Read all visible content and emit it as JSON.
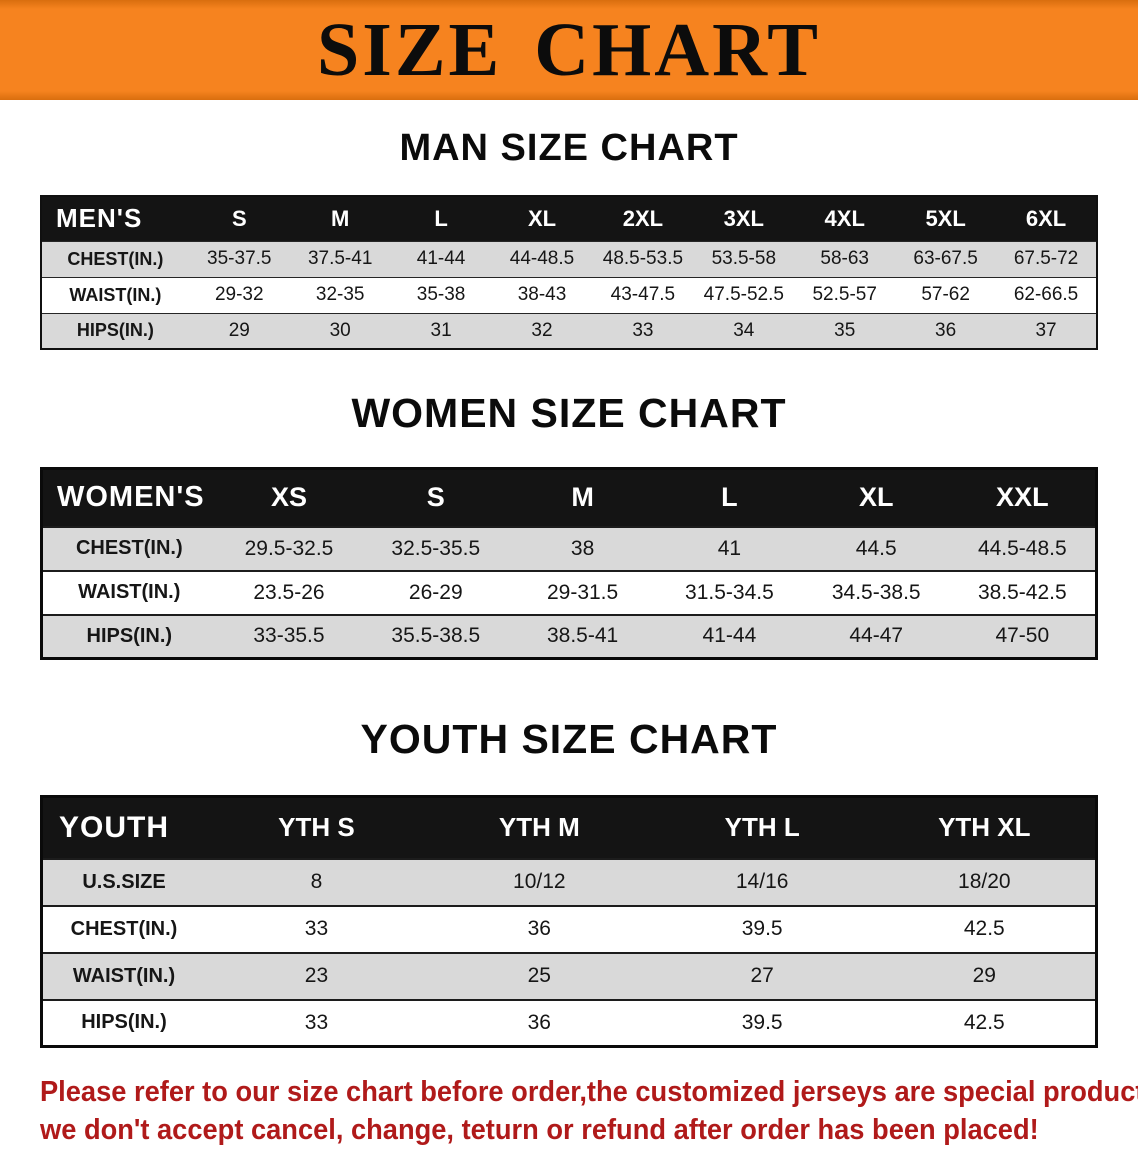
{
  "banner": {
    "title": "SIZE CHART"
  },
  "colors": {
    "banner_orange": "#f6831f",
    "header_black": "#141414",
    "row_shade": "#d9d9d9",
    "note_red": "#b01a1a"
  },
  "sections": [
    {
      "heading": "MAN SIZE CHART",
      "table": {
        "id": "mens",
        "header_label": "MEN'S",
        "columns": [
          "S",
          "M",
          "L",
          "XL",
          "2XL",
          "3XL",
          "4XL",
          "5XL",
          "6XL"
        ],
        "rows": [
          {
            "label": "CHEST(IN.)",
            "values": [
              "35-37.5",
              "37.5-41",
              "41-44",
              "44-48.5",
              "48.5-53.5",
              "53.5-58",
              "58-63",
              "63-67.5",
              "67.5-72"
            ]
          },
          {
            "label": "WAIST(IN.)",
            "values": [
              "29-32",
              "32-35",
              "35-38",
              "38-43",
              "43-47.5",
              "47.5-52.5",
              "52.5-57",
              "57-62",
              "62-66.5"
            ]
          },
          {
            "label": "HIPS(IN.)",
            "values": [
              "29",
              "30",
              "31",
              "32",
              "33",
              "34",
              "35",
              "36",
              "37"
            ]
          }
        ]
      }
    },
    {
      "heading": "WOMEN SIZE CHART",
      "table": {
        "id": "womens",
        "header_label": "WOMEN'S",
        "columns": [
          "XS",
          "S",
          "M",
          "L",
          "XL",
          "XXL"
        ],
        "rows": [
          {
            "label": "CHEST(IN.)",
            "values": [
              "29.5-32.5",
              "32.5-35.5",
              "38",
              "41",
              "44.5",
              "44.5-48.5"
            ]
          },
          {
            "label": "WAIST(IN.)",
            "values": [
              "23.5-26",
              "26-29",
              "29-31.5",
              "31.5-34.5",
              "34.5-38.5",
              "38.5-42.5"
            ]
          },
          {
            "label": "HIPS(IN.)",
            "values": [
              "33-35.5",
              "35.5-38.5",
              "38.5-41",
              "41-44",
              "44-47",
              "47-50"
            ]
          }
        ]
      }
    },
    {
      "heading": "YOUTH SIZE CHART",
      "table": {
        "id": "youth",
        "header_label": "YOUTH",
        "columns": [
          "YTH S",
          "YTH M",
          "YTH L",
          "YTH XL"
        ],
        "rows": [
          {
            "label": "U.S.SIZE",
            "values": [
              "8",
              "10/12",
              "14/16",
              "18/20"
            ]
          },
          {
            "label": "CHEST(IN.)",
            "values": [
              "33",
              "36",
              "39.5",
              "42.5"
            ]
          },
          {
            "label": "WAIST(IN.)",
            "values": [
              "23",
              "25",
              "27",
              "29"
            ]
          },
          {
            "label": "HIPS(IN.)",
            "values": [
              "33",
              "36",
              "39.5",
              "42.5"
            ]
          }
        ]
      }
    }
  ],
  "footer": {
    "line1": "Please refer to our size chart before order,the customized jerseys are special products,",
    "line2": "we don't accept cancel, change, teturn or refund after order has been placed!"
  }
}
